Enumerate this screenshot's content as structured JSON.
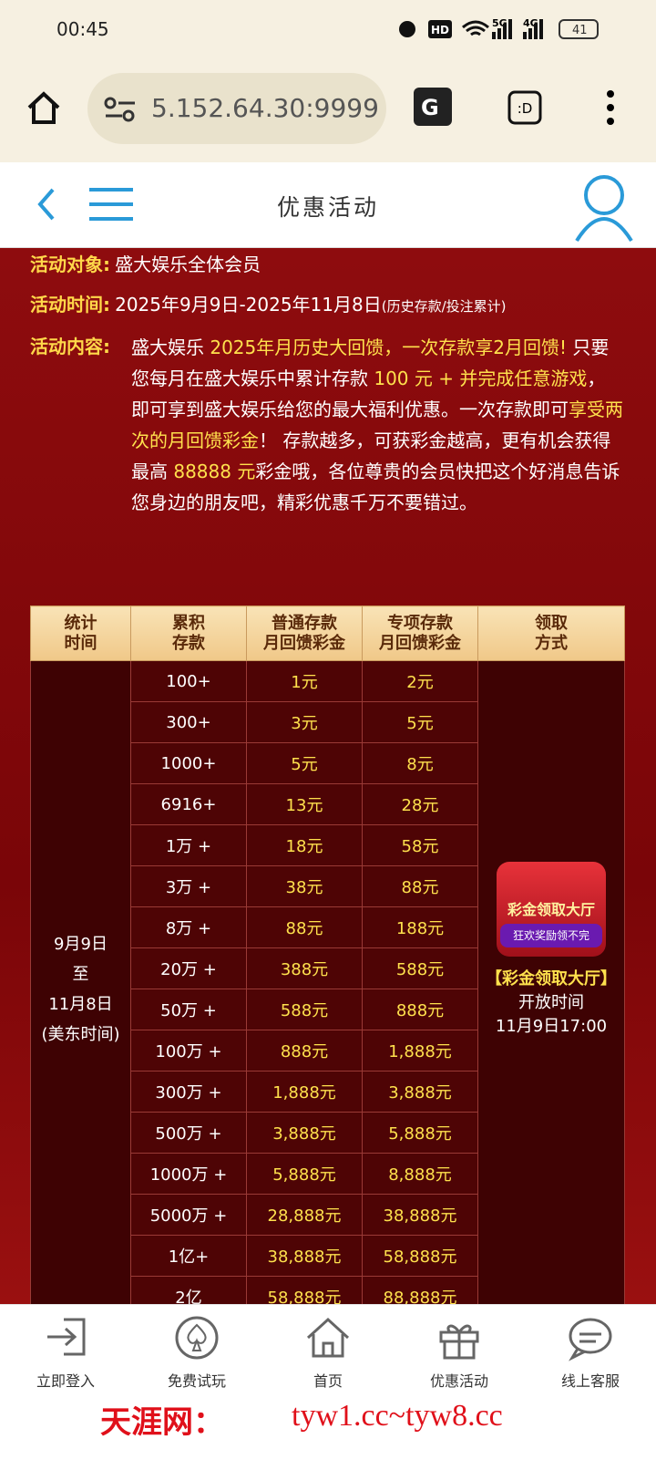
{
  "status_bar": {
    "time": "00:45",
    "hd": "HD",
    "net1": "5G",
    "net2": "4G",
    "battery": "41"
  },
  "browser": {
    "url": "5.152.64.30:9999",
    "tab": ":D"
  },
  "header": {
    "title": "优惠活动"
  },
  "intro": {
    "target_label": "活动对象:",
    "target": "盛大娱乐全体会员",
    "time_label": "活动时间:",
    "time": "2025年9月9日-2025年11月8日",
    "time_note": "(历史存款/投注累计)",
    "content_label": "活动内容:",
    "content": [
      {
        "text": "盛大娱乐 ",
        "highlight": false
      },
      {
        "text": "2025年月历史大回馈，一次存款享2月回馈!",
        "highlight": true
      },
      {
        "text": " 只要您每月在盛大娱乐中累计存款 ",
        "highlight": false
      },
      {
        "text": "100 元 + 并完成任意游戏",
        "highlight": true
      },
      {
        "text": "，即可享到盛大娱乐给您的最大福利优惠。一次存款即可",
        "highlight": false
      },
      {
        "text": "享受两次的月回馈彩金",
        "highlight": true
      },
      {
        "text": "！ 存款越多，可获彩金越高，更有机会获得最高 ",
        "highlight": false
      },
      {
        "text": "88888 元",
        "highlight": true
      },
      {
        "text": "彩金哦，各位尊贵的会员快把这个好消息告诉您身边的朋友吧，精彩优惠千万不要错过。",
        "highlight": false
      }
    ]
  },
  "table": {
    "headers": [
      [
        "统计",
        "时间"
      ],
      [
        "累积",
        "存款"
      ],
      [
        "普通存款",
        "月回馈彩金"
      ],
      [
        "专项存款",
        "月回馈彩金"
      ],
      [
        "领取",
        "方式"
      ]
    ],
    "period": [
      "9月9日",
      "至",
      "11月8日",
      "(美东时间)"
    ],
    "rows": [
      [
        "100+",
        "1元",
        "2元"
      ],
      [
        "300+",
        "3元",
        "5元"
      ],
      [
        "1000+",
        "5元",
        "8元"
      ],
      [
        "6916+",
        "13元",
        "28元"
      ],
      [
        "1万 +",
        "18元",
        "58元"
      ],
      [
        "3万 +",
        "38元",
        "88元"
      ],
      [
        "8万 +",
        "88元",
        "188元"
      ],
      [
        "20万 +",
        "388元",
        "588元"
      ],
      [
        "50万 +",
        "588元",
        "888元"
      ],
      [
        "100万 +",
        "888元",
        "1,888元"
      ],
      [
        "300万 +",
        "1,888元",
        "3,888元"
      ],
      [
        "500万 +",
        "3,888元",
        "5,888元"
      ],
      [
        "1000万 +",
        "5,888元",
        "8,888元"
      ],
      [
        "5000万 +",
        "28,888元",
        "38,888元"
      ],
      [
        "1亿+",
        "38,888元",
        "58,888元"
      ],
      [
        "2亿",
        "58,888元",
        "88,888元"
      ]
    ],
    "method": {
      "badge_title": "彩金领取大厅",
      "badge_sub": "狂欢奖励领不完",
      "lines": [
        "【彩金领取大厅】",
        "开放时间",
        "11月9日17:00"
      ]
    }
  },
  "nav": [
    "立即登入",
    "免费试玩",
    "首页",
    "优惠活动",
    "线上客服"
  ],
  "watermark": {
    "name": "天涯网：",
    "urls": "tyw1.cc~tyw8.cc"
  }
}
